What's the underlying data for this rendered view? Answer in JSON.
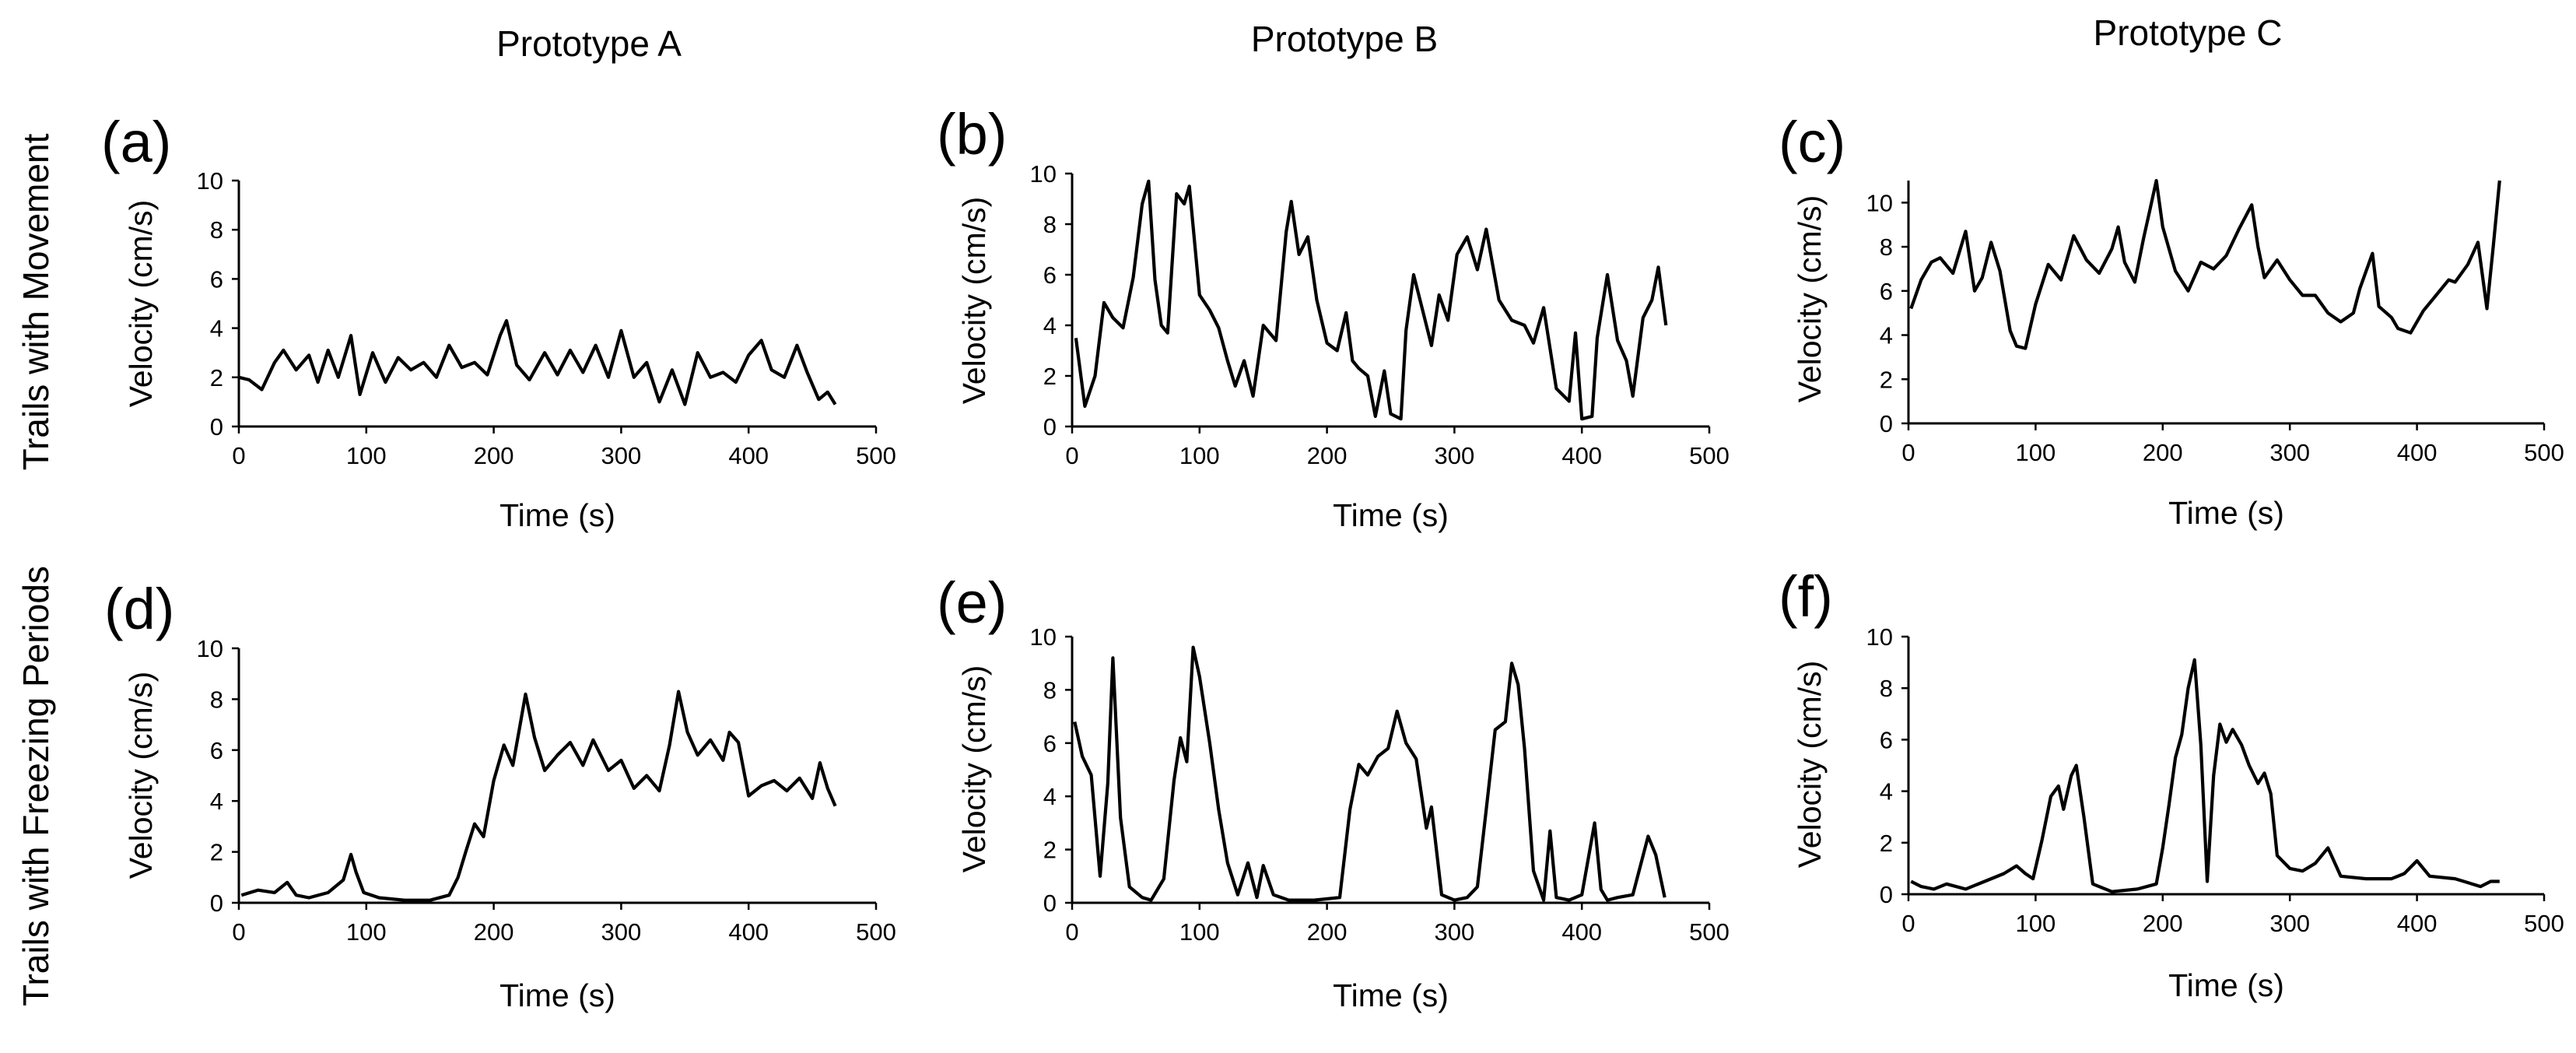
{
  "figure": {
    "column_titles": [
      "Prototype A",
      "Prototype B",
      "Prototype C"
    ],
    "row_titles": [
      "Trails with Movement",
      "Trails with Freezing Periods"
    ]
  },
  "chart_data": [
    {
      "type": "line",
      "panel": "(a)",
      "title": "",
      "xlabel": "Time (s)",
      "ylabel": "Velocity (cm/s)",
      "xlim": [
        0,
        500
      ],
      "ylim": [
        0,
        10
      ],
      "xticks": [
        0,
        100,
        200,
        300,
        400,
        500
      ],
      "yticks": [
        0,
        2,
        4,
        6,
        8,
        10
      ],
      "series": [
        {
          "name": "velocity",
          "x": [
            0,
            8,
            18,
            28,
            35,
            45,
            55,
            62,
            70,
            78,
            88,
            95,
            105,
            115,
            125,
            135,
            145,
            155,
            165,
            175,
            185,
            195,
            205,
            210,
            218,
            228,
            240,
            250,
            260,
            270,
            280,
            290,
            300,
            310,
            320,
            330,
            340,
            350,
            360,
            370,
            380,
            390,
            400,
            410,
            418,
            428,
            438,
            446,
            455,
            462,
            468
          ],
          "y": [
            2.0,
            1.9,
            1.5,
            2.6,
            3.1,
            2.3,
            2.9,
            1.8,
            3.1,
            2.0,
            3.7,
            1.3,
            3.0,
            1.8,
            2.8,
            2.3,
            2.6,
            2.0,
            3.3,
            2.4,
            2.6,
            2.1,
            3.7,
            4.3,
            2.5,
            1.9,
            3.0,
            2.1,
            3.1,
            2.2,
            3.3,
            2.0,
            3.9,
            2.0,
            2.6,
            1.0,
            2.3,
            0.9,
            3.0,
            2.0,
            2.2,
            1.8,
            2.9,
            3.5,
            2.3,
            2.0,
            3.3,
            2.2,
            1.1,
            1.4,
            0.9
          ]
        }
      ]
    },
    {
      "type": "line",
      "panel": "(b)",
      "title": "",
      "xlabel": "Time (s)",
      "ylabel": "Velocity (cm/s)",
      "xlim": [
        0,
        500
      ],
      "ylim": [
        0,
        10
      ],
      "xticks": [
        0,
        100,
        200,
        300,
        400,
        500
      ],
      "yticks": [
        0,
        2,
        4,
        6,
        8,
        10
      ],
      "series": [
        {
          "name": "velocity",
          "x": [
            3,
            10,
            18,
            25,
            32,
            40,
            48,
            55,
            60,
            65,
            70,
            75,
            82,
            88,
            92,
            100,
            108,
            115,
            122,
            128,
            135,
            142,
            150,
            160,
            168,
            172,
            178,
            185,
            192,
            200,
            208,
            215,
            220,
            225,
            232,
            238,
            245,
            250,
            258,
            262,
            268,
            275,
            282,
            288,
            295,
            302,
            310,
            318,
            325,
            335,
            345,
            355,
            362,
            370,
            380,
            390,
            395,
            400,
            408,
            412,
            420,
            428,
            435,
            440,
            448,
            455,
            460,
            466
          ],
          "y": [
            3.5,
            0.8,
            2.0,
            4.9,
            4.3,
            3.9,
            5.9,
            8.8,
            9.7,
            5.8,
            4.0,
            3.7,
            9.2,
            8.8,
            9.5,
            5.2,
            4.6,
            3.9,
            2.6,
            1.6,
            2.6,
            1.2,
            4.0,
            3.4,
            7.7,
            8.9,
            6.8,
            7.5,
            5.0,
            3.3,
            3.0,
            4.5,
            2.6,
            2.3,
            2.0,
            0.4,
            2.2,
            0.5,
            0.3,
            3.8,
            6.0,
            4.6,
            3.2,
            5.2,
            4.2,
            6.8,
            7.5,
            6.2,
            7.8,
            5.0,
            4.2,
            4.0,
            3.3,
            4.7,
            1.5,
            1.0,
            3.7,
            0.3,
            0.4,
            3.5,
            6.0,
            3.4,
            2.6,
            1.2,
            4.3,
            5.0,
            6.3,
            4.0
          ]
        }
      ]
    },
    {
      "type": "line",
      "panel": "(c)",
      "title": "",
      "xlabel": "Time (s)",
      "ylabel": "Velocity (cm/s)",
      "xlim": [
        0,
        500
      ],
      "ylim": [
        0,
        11
      ],
      "xticks": [
        0,
        100,
        200,
        300,
        400,
        500
      ],
      "yticks": [
        0,
        2,
        4,
        6,
        8,
        10
      ],
      "series": [
        {
          "name": "velocity",
          "x": [
            2,
            10,
            18,
            25,
            35,
            45,
            52,
            58,
            65,
            72,
            80,
            85,
            92,
            100,
            110,
            120,
            130,
            140,
            150,
            160,
            165,
            170,
            178,
            185,
            190,
            195,
            200,
            210,
            220,
            230,
            240,
            250,
            260,
            270,
            275,
            280,
            290,
            300,
            310,
            320,
            330,
            340,
            350,
            355,
            365,
            370,
            380,
            385,
            395,
            405,
            415,
            425,
            430,
            440,
            448,
            455,
            460,
            465
          ],
          "y": [
            5.2,
            6.5,
            7.3,
            7.5,
            6.8,
            8.7,
            6.0,
            6.6,
            8.2,
            6.9,
            4.2,
            3.5,
            3.4,
            5.4,
            7.2,
            6.5,
            8.5,
            7.4,
            6.8,
            7.9,
            8.9,
            7.3,
            6.4,
            8.4,
            9.7,
            11.0,
            8.9,
            6.9,
            6.0,
            7.3,
            7.0,
            7.6,
            8.8,
            9.9,
            8.0,
            6.6,
            7.4,
            6.5,
            5.8,
            5.8,
            5.0,
            4.6,
            5.0,
            6.1,
            7.7,
            5.3,
            4.8,
            4.3,
            4.1,
            5.1,
            5.8,
            6.5,
            6.4,
            7.2,
            8.2,
            5.2,
            8.0,
            11.0
          ]
        }
      ]
    },
    {
      "type": "line",
      "panel": "(d)",
      "title": "",
      "xlabel": "Time (s)",
      "ylabel": "Velocity (cm/s)",
      "xlim": [
        0,
        500
      ],
      "ylim": [
        0,
        10
      ],
      "xticks": [
        0,
        100,
        200,
        300,
        400,
        500
      ],
      "yticks": [
        0,
        2,
        4,
        6,
        8,
        10
      ],
      "series": [
        {
          "name": "velocity",
          "x": [
            2,
            15,
            28,
            38,
            45,
            55,
            70,
            82,
            88,
            92,
            98,
            110,
            130,
            150,
            165,
            172,
            178,
            185,
            192,
            200,
            208,
            215,
            220,
            225,
            232,
            240,
            250,
            260,
            270,
            278,
            290,
            300,
            310,
            320,
            330,
            338,
            345,
            352,
            360,
            370,
            380,
            385,
            392,
            400,
            410,
            420,
            430,
            440,
            450,
            456,
            462,
            468
          ],
          "y": [
            0.3,
            0.5,
            0.4,
            0.8,
            0.3,
            0.2,
            0.4,
            0.9,
            1.9,
            1.2,
            0.4,
            0.2,
            0.1,
            0.1,
            0.3,
            1.0,
            2.0,
            3.1,
            2.6,
            4.8,
            6.2,
            5.4,
            6.8,
            8.2,
            6.5,
            5.2,
            5.8,
            6.3,
            5.4,
            6.4,
            5.2,
            5.6,
            4.5,
            5.0,
            4.4,
            6.2,
            8.3,
            6.7,
            5.8,
            6.4,
            5.6,
            6.7,
            6.3,
            4.2,
            4.6,
            4.8,
            4.4,
            4.9,
            4.1,
            5.5,
            4.5,
            3.8
          ]
        }
      ]
    },
    {
      "type": "line",
      "panel": "(e)",
      "title": "",
      "xlabel": "Time (s)",
      "ylabel": "Velocity (cm/s)",
      "xlim": [
        0,
        500
      ],
      "ylim": [
        0,
        10
      ],
      "xticks": [
        0,
        100,
        200,
        300,
        400,
        500
      ],
      "yticks": [
        0,
        2,
        4,
        6,
        8,
        10
      ],
      "series": [
        {
          "name": "velocity",
          "x": [
            2,
            8,
            15,
            22,
            28,
            32,
            38,
            45,
            55,
            62,
            72,
            80,
            85,
            90,
            95,
            100,
            108,
            115,
            122,
            130,
            138,
            145,
            150,
            158,
            170,
            190,
            210,
            218,
            225,
            232,
            240,
            248,
            255,
            262,
            270,
            278,
            282,
            290,
            300,
            310,
            318,
            325,
            332,
            340,
            345,
            350,
            355,
            362,
            370,
            375,
            380,
            390,
            400,
            410,
            415,
            420,
            428,
            440,
            452,
            458,
            465
          ],
          "y": [
            6.8,
            5.5,
            4.8,
            1.0,
            4.5,
            9.2,
            3.2,
            0.6,
            0.2,
            0.1,
            0.9,
            4.6,
            6.2,
            5.3,
            9.6,
            8.5,
            6.0,
            3.5,
            1.5,
            0.3,
            1.5,
            0.2,
            1.4,
            0.3,
            0.1,
            0.1,
            0.2,
            3.5,
            5.2,
            4.8,
            5.5,
            5.8,
            7.2,
            6.0,
            5.4,
            2.8,
            3.6,
            0.3,
            0.1,
            0.2,
            0.6,
            3.5,
            6.5,
            6.8,
            9.0,
            8.2,
            5.8,
            1.2,
            0.1,
            2.7,
            0.2,
            0.1,
            0.3,
            3.0,
            0.5,
            0.1,
            0.2,
            0.3,
            2.5,
            1.8,
            0.2
          ]
        }
      ]
    },
    {
      "type": "line",
      "panel": "(f)",
      "title": "",
      "xlabel": "Time (s)",
      "ylabel": "Velocity (cm/s)",
      "xlim": [
        0,
        500
      ],
      "ylim": [
        0,
        10
      ],
      "xticks": [
        0,
        100,
        200,
        300,
        400,
        500
      ],
      "yticks": [
        0,
        2,
        4,
        6,
        8,
        10
      ],
      "series": [
        {
          "name": "velocity",
          "x": [
            2,
            10,
            20,
            30,
            45,
            60,
            75,
            85,
            92,
            98,
            105,
            112,
            118,
            122,
            128,
            132,
            138,
            145,
            160,
            180,
            195,
            200,
            205,
            210,
            215,
            220,
            225,
            230,
            235,
            240,
            245,
            250,
            255,
            262,
            268,
            275,
            280,
            285,
            290,
            300,
            310,
            320,
            330,
            340,
            360,
            380,
            390,
            400,
            410,
            430,
            450,
            458,
            465
          ],
          "y": [
            0.5,
            0.3,
            0.2,
            0.4,
            0.2,
            0.5,
            0.8,
            1.1,
            0.8,
            0.6,
            2.1,
            3.8,
            4.2,
            3.3,
            4.6,
            5.0,
            3.0,
            0.4,
            0.1,
            0.2,
            0.4,
            1.8,
            3.5,
            5.3,
            6.2,
            8.0,
            9.1,
            5.8,
            0.5,
            4.6,
            6.6,
            5.9,
            6.4,
            5.8,
            5.0,
            4.3,
            4.7,
            3.9,
            1.5,
            1.0,
            0.9,
            1.2,
            1.8,
            0.7,
            0.6,
            0.6,
            0.8,
            1.3,
            0.7,
            0.6,
            0.3,
            0.5,
            0.5
          ]
        }
      ]
    }
  ]
}
